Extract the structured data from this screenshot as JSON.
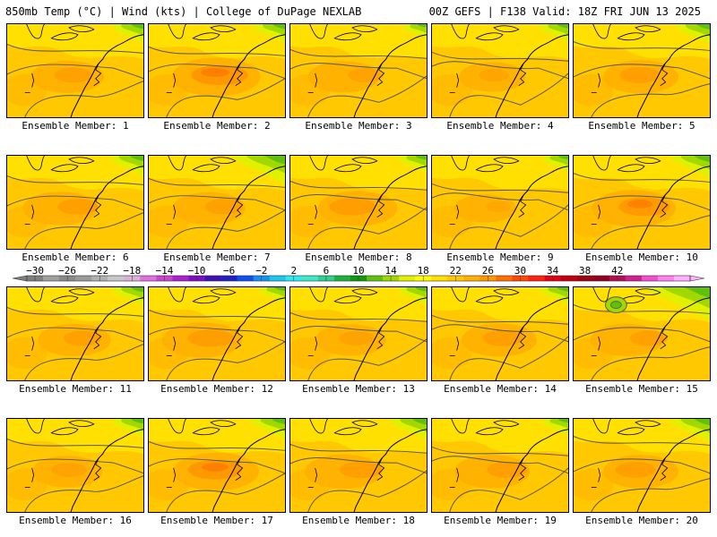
{
  "header": {
    "title_left": "850mb Temp (°C) | Wind (kts) | College of DuPage NEXLAB",
    "title_right": "00Z GEFS | F138 Valid: 18Z FRI JUN 13 2025"
  },
  "panels": [
    {
      "label": "Ensemble Member: 1",
      "warm": 0.45,
      "cool": 0.45
    },
    {
      "label": "Ensemble Member: 2",
      "warm": 0.8,
      "cool": 0.45
    },
    {
      "label": "Ensemble Member: 3",
      "warm": 0.4,
      "cool": 0.3
    },
    {
      "label": "Ensemble Member: 4",
      "warm": 0.3,
      "cool": 0.4
    },
    {
      "label": "Ensemble Member: 5",
      "warm": 0.5,
      "cool": 0.5
    },
    {
      "label": "Ensemble Member: 6",
      "warm": 0.5,
      "cool": 0.5
    },
    {
      "label": "Ensemble Member: 7",
      "warm": 0.45,
      "cool": 0.8
    },
    {
      "label": "Ensemble Member: 8",
      "warm": 0.6,
      "cool": 0.4
    },
    {
      "label": "Ensemble Member: 9",
      "warm": 0.2,
      "cool": 0.35
    },
    {
      "label": "Ensemble Member: 10",
      "warm": 0.7,
      "cool": 0.6
    },
    {
      "label": "Ensemble Member: 11",
      "warm": 0.45,
      "cool": 0.45
    },
    {
      "label": "Ensemble Member: 12",
      "warm": 0.6,
      "cool": 0.35
    },
    {
      "label": "Ensemble Member: 13",
      "warm": 0.4,
      "cool": 0.4
    },
    {
      "label": "Ensemble Member: 14",
      "warm": 0.5,
      "cool": 0.4
    },
    {
      "label": "Ensemble Member: 15",
      "warm": 0.45,
      "cool": 1.0
    },
    {
      "label": "Ensemble Member: 16",
      "warm": 0.4,
      "cool": 0.45
    },
    {
      "label": "Ensemble Member: 17",
      "warm": 0.75,
      "cool": 0.5
    },
    {
      "label": "Ensemble Member: 18",
      "warm": 0.55,
      "cool": 0.55
    },
    {
      "label": "Ensemble Member: 19",
      "warm": 0.5,
      "cool": 0.35
    },
    {
      "label": "Ensemble Member: 20",
      "warm": 0.5,
      "cool": 0.6
    }
  ],
  "colorbar": {
    "ticks": [
      "−30",
      "−26",
      "−22",
      "−18",
      "−14",
      "−10",
      "−6",
      "−2",
      "2",
      "6",
      "10",
      "14",
      "18",
      "22",
      "26",
      "30",
      "34",
      "38",
      "42"
    ],
    "colors": [
      "#7f7f7f",
      "#a0a0a0",
      "#8a8a8a",
      "#9a9a9a",
      "#b0b0b0",
      "#c8c8c8",
      "#d8b0d8",
      "#e070e0",
      "#cc44cc",
      "#aa22cc",
      "#7a10c0",
      "#4010b0",
      "#2020c8",
      "#1050ee",
      "#1890f0",
      "#18c8f0",
      "#30e8f0",
      "#40e8c8",
      "#30d090",
      "#20b040",
      "#109810",
      "#60c010",
      "#a0d800",
      "#e0f000",
      "#ffff00",
      "#ffe000",
      "#ffc800",
      "#ffb000",
      "#ff9800",
      "#ff7000",
      "#ff4800",
      "#ff2010",
      "#e00018",
      "#c00010",
      "#a00010",
      "#900020",
      "#b01050",
      "#d02090",
      "#f050d0",
      "#ff80f0",
      "#ffb0ff"
    ]
  }
}
